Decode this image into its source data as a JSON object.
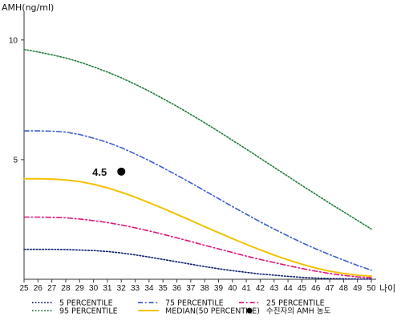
{
  "chart_data": {
    "type": "line",
    "ylabel": "AMH(ng/ml)",
    "xlabel": "나이",
    "xlim": [
      25,
      50
    ],
    "ylim": [
      0,
      11
    ],
    "x": [
      25,
      26,
      27,
      28,
      29,
      30,
      31,
      32,
      33,
      34,
      35,
      36,
      37,
      38,
      39,
      40,
      41,
      42,
      43,
      44,
      45,
      46,
      47,
      48,
      49,
      50
    ],
    "x_tick_labels": [
      "25",
      "26",
      "27",
      "28",
      "29",
      "30",
      "31",
      "32",
      "33",
      "34",
      "35",
      "36",
      "37",
      "38",
      "39",
      "40",
      "41",
      "42",
      "43",
      "44",
      "45",
      "46",
      "47",
      "48",
      "49",
      "50"
    ],
    "y_ticks": [
      5,
      10
    ],
    "y_tick_labels": [
      "5",
      "10"
    ],
    "series": [
      {
        "name": "5 PERCENTILE",
        "color": "#0a1d6e",
        "dash": "dotted",
        "values": [
          1.25,
          1.25,
          1.25,
          1.24,
          1.22,
          1.2,
          1.16,
          1.1,
          1.02,
          0.93,
          0.83,
          0.73,
          0.63,
          0.53,
          0.44,
          0.36,
          0.29,
          0.22,
          0.17,
          0.12,
          0.08,
          0.05,
          0.03,
          0.02,
          0.01,
          0.01
        ]
      },
      {
        "name": "75 PERCENTILE",
        "color": "#3b5fcc",
        "dash": "dash-dot",
        "values": [
          6.2,
          6.2,
          6.19,
          6.15,
          6.05,
          5.9,
          5.72,
          5.5,
          5.24,
          4.96,
          4.66,
          4.35,
          4.03,
          3.7,
          3.37,
          3.04,
          2.72,
          2.4,
          2.1,
          1.81,
          1.53,
          1.27,
          1.03,
          0.8,
          0.58,
          0.38
        ]
      },
      {
        "name": "25 PERCENTILE",
        "color": "#e0147a",
        "dash": "dash-dot",
        "values": [
          2.6,
          2.6,
          2.59,
          2.57,
          2.52,
          2.45,
          2.37,
          2.27,
          2.15,
          2.02,
          1.88,
          1.73,
          1.58,
          1.42,
          1.27,
          1.12,
          0.97,
          0.83,
          0.7,
          0.57,
          0.45,
          0.34,
          0.24,
          0.16,
          0.1,
          0.06
        ]
      },
      {
        "name": "95 PERCENTILE",
        "color": "#1f7a3a",
        "dash": "dotted",
        "values": [
          9.6,
          9.5,
          9.38,
          9.25,
          9.08,
          8.88,
          8.66,
          8.42,
          8.15,
          7.86,
          7.55,
          7.23,
          6.89,
          6.54,
          6.18,
          5.81,
          5.44,
          5.06,
          4.68,
          4.3,
          3.92,
          3.55,
          3.18,
          2.82,
          2.46,
          2.1
        ]
      },
      {
        "name": "MEDIAN(50 PERCENTILE)",
        "color": "#f2c200",
        "dash": "solid",
        "values": [
          4.2,
          4.2,
          4.19,
          4.15,
          4.08,
          3.97,
          3.82,
          3.64,
          3.43,
          3.2,
          2.96,
          2.71,
          2.46,
          2.2,
          1.95,
          1.7,
          1.46,
          1.23,
          1.01,
          0.81,
          0.63,
          0.47,
          0.34,
          0.24,
          0.17,
          0.13
        ]
      }
    ],
    "points": [
      {
        "name": "수진자의 AMH 농도",
        "x": 32,
        "y": 4.5,
        "label": "4.5",
        "color": "#000000"
      }
    ],
    "legend_position": "bottom",
    "grid": false
  }
}
